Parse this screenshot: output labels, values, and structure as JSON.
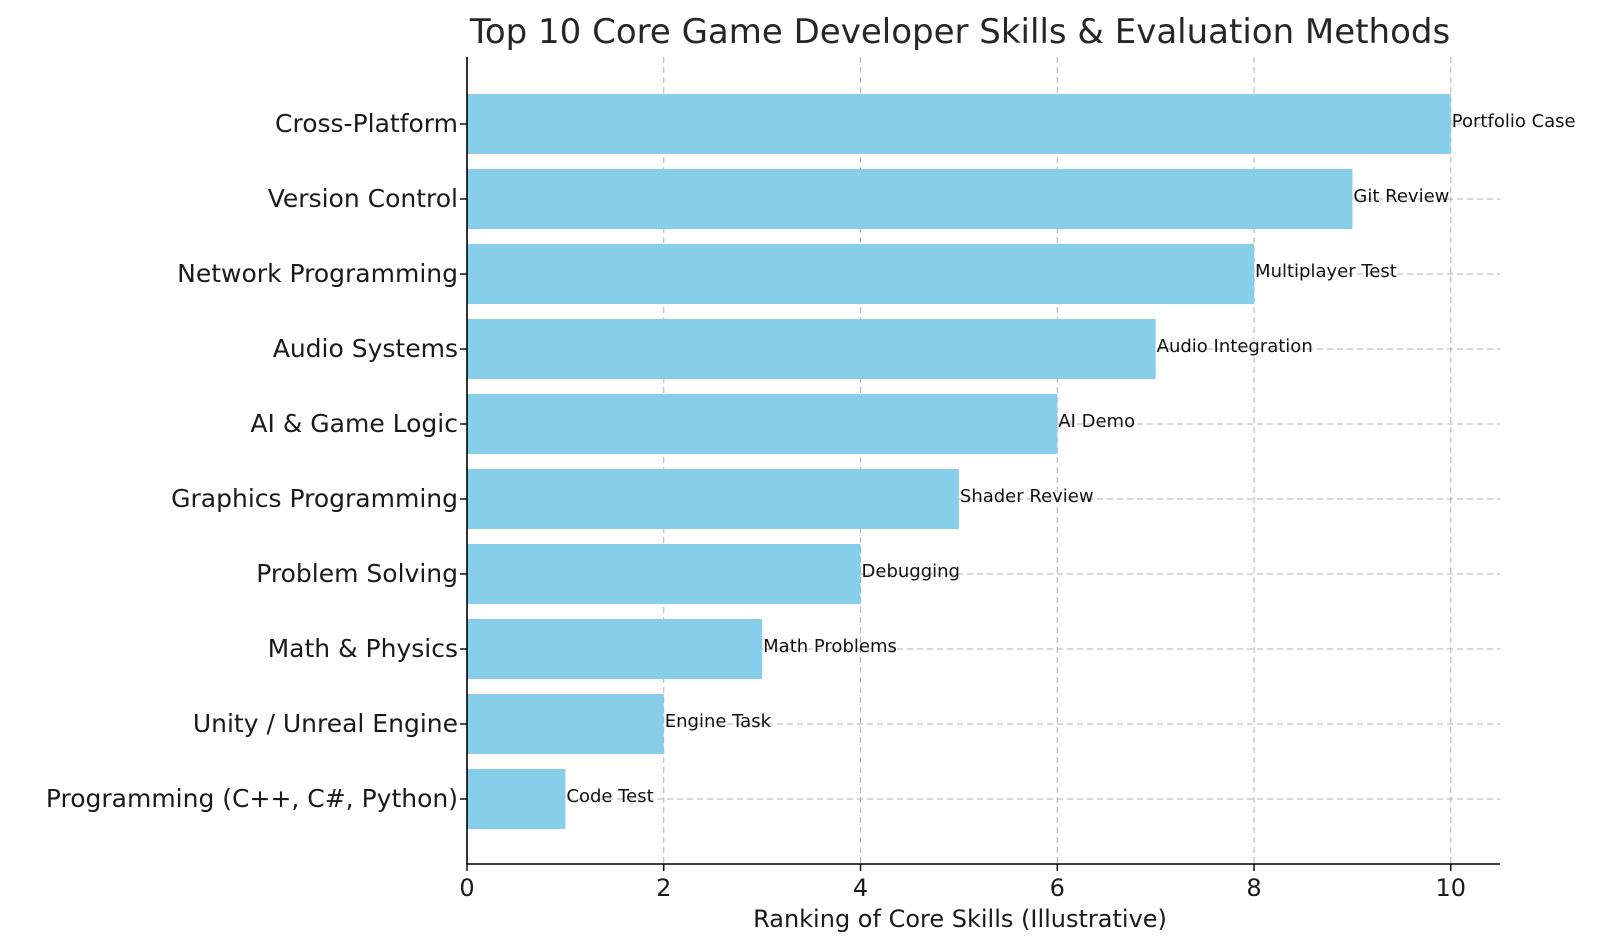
{
  "chart_data": {
    "type": "bar",
    "orientation": "horizontal",
    "title": "Top 10 Core Game Developer Skills & Evaluation Methods",
    "xlabel": "Ranking of Core Skills (Illustrative)",
    "ylabel": "",
    "categories": [
      "Programming (C++, C#, Python)",
      "Unity / Unreal Engine",
      "Math & Physics",
      "Problem Solving",
      "Graphics Programming",
      "AI & Game Logic",
      "Audio Systems",
      "Network Programming",
      "Version Control",
      "Cross-Platform"
    ],
    "values": [
      1,
      2,
      3,
      4,
      5,
      6,
      7,
      8,
      9,
      10
    ],
    "data_labels": [
      "Code Test",
      "Engine Task",
      "Math Problems",
      "Debugging",
      "Shader Review",
      "AI Demo",
      "Audio Integration",
      "Multiplayer Test",
      "Git Review",
      "Portfolio Case"
    ],
    "xlim": [
      0,
      10.5
    ],
    "xticks": [
      0,
      2,
      4,
      6,
      8,
      10
    ],
    "grid": true,
    "legend": "none",
    "bar_color": "#87CEEB"
  }
}
